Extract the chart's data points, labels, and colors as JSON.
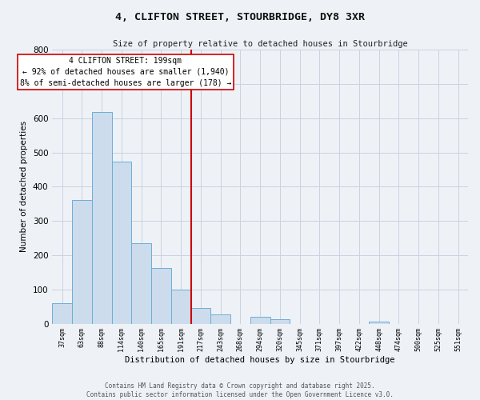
{
  "title": "4, CLIFTON STREET, STOURBRIDGE, DY8 3XR",
  "subtitle": "Size of property relative to detached houses in Stourbridge",
  "xlabel": "Distribution of detached houses by size in Stourbridge",
  "ylabel": "Number of detached properties",
  "bar_labels": [
    "37sqm",
    "63sqm",
    "88sqm",
    "114sqm",
    "140sqm",
    "165sqm",
    "191sqm",
    "217sqm",
    "243sqm",
    "268sqm",
    "294sqm",
    "320sqm",
    "345sqm",
    "371sqm",
    "397sqm",
    "422sqm",
    "448sqm",
    "474sqm",
    "500sqm",
    "525sqm",
    "551sqm"
  ],
  "bar_values": [
    60,
    360,
    617,
    474,
    236,
    163,
    100,
    46,
    26,
    0,
    20,
    13,
    0,
    0,
    0,
    0,
    7,
    0,
    0,
    0,
    0
  ],
  "bar_color": "#ccdcec",
  "bar_edge_color": "#6baed6",
  "property_line_label": "4 CLIFTON STREET: 199sqm",
  "annotation_line1": "← 92% of detached houses are smaller (1,940)",
  "annotation_line2": "8% of semi-detached houses are larger (178) →",
  "vline_color": "#cc0000",
  "vline_index": 6.5,
  "ylim": [
    0,
    800
  ],
  "yticks": [
    0,
    100,
    200,
    300,
    400,
    500,
    600,
    700,
    800
  ],
  "background_color": "#eef2f7",
  "grid_color": "#c8d4e0",
  "footer_line1": "Contains HM Land Registry data © Crown copyright and database right 2025.",
  "footer_line2": "Contains public sector information licensed under the Open Government Licence v3.0."
}
